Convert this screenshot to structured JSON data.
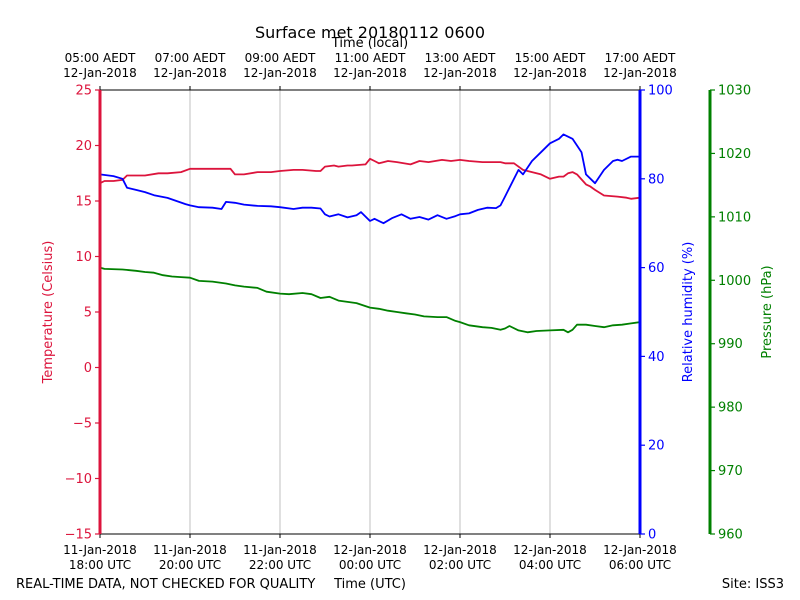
{
  "chart_data": {
    "type": "line",
    "title": "Surface met 20180112 0600",
    "xlabel_top": "Time (local)",
    "xlabel": "Time (UTC)",
    "footer_left": "REAL-TIME DATA, NOT CHECKED FOR QUALITY",
    "footer_right": "Site: ISS3",
    "x_range_hours": [
      0,
      12
    ],
    "x_ticks": [
      0,
      2,
      4,
      6,
      8,
      10,
      12
    ],
    "x_tick_labels_utc": [
      [
        "11-Jan-2018",
        "18:00 UTC"
      ],
      [
        "11-Jan-2018",
        "20:00 UTC"
      ],
      [
        "11-Jan-2018",
        "22:00 UTC"
      ],
      [
        "12-Jan-2018",
        "00:00 UTC"
      ],
      [
        "12-Jan-2018",
        "02:00 UTC"
      ],
      [
        "12-Jan-2018",
        "04:00 UTC"
      ],
      [
        "12-Jan-2018",
        "06:00 UTC"
      ]
    ],
    "x_tick_labels_local": [
      [
        "05:00 AEDT",
        "12-Jan-2018"
      ],
      [
        "07:00 AEDT",
        "12-Jan-2018"
      ],
      [
        "09:00 AEDT",
        "12-Jan-2018"
      ],
      [
        "11:00 AEDT",
        "12-Jan-2018"
      ],
      [
        "13:00 AEDT",
        "12-Jan-2018"
      ],
      [
        "15:00 AEDT",
        "12-Jan-2018"
      ],
      [
        "17:00 AEDT",
        "12-Jan-2018"
      ]
    ],
    "grid": "vertical",
    "axes": {
      "temperature": {
        "label": "Temperature (Celsius)",
        "ylim": [
          -15,
          25
        ],
        "ticks": [
          -15,
          -10,
          -5,
          0,
          5,
          10,
          15,
          20,
          25
        ],
        "tick_labels": [
          "−15",
          "−10",
          "−5",
          "0",
          "5",
          "10",
          "15",
          "20",
          "25"
        ],
        "color": "#dc143c"
      },
      "humidity": {
        "label": "Relative humidity (%)",
        "ylim": [
          0,
          100
        ],
        "ticks": [
          0,
          20,
          40,
          60,
          80,
          100
        ],
        "tick_labels": [
          "0",
          "20",
          "40",
          "60",
          "80",
          "100"
        ],
        "color": "#0000ff"
      },
      "pressure": {
        "label": "Pressure (hPa)",
        "ylim": [
          960,
          1030
        ],
        "ticks": [
          960,
          970,
          980,
          990,
          1000,
          1010,
          1020,
          1030
        ],
        "tick_labels": [
          "960",
          "970",
          "980",
          "990",
          "1000",
          "1010",
          "1020",
          "1030"
        ],
        "color": "#008000"
      }
    },
    "series": [
      {
        "name": "Temperature",
        "axis": "temperature",
        "color": "#dc143c",
        "x": [
          0,
          0.1,
          0.3,
          0.5,
          0.6,
          1.0,
          1.3,
          1.5,
          1.8,
          2.0,
          2.2,
          2.5,
          2.9,
          3.0,
          3.2,
          3.5,
          3.8,
          4.0,
          4.3,
          4.5,
          4.8,
          4.9,
          5.0,
          5.2,
          5.3,
          5.5,
          5.6,
          5.9,
          6.0,
          6.1,
          6.2,
          6.4,
          6.6,
          6.9,
          7.1,
          7.3,
          7.6,
          7.8,
          8.0,
          8.2,
          8.5,
          8.9,
          9.0,
          9.2,
          9.4,
          9.6,
          9.8,
          10.0,
          10.2,
          10.3,
          10.4,
          10.5,
          10.6,
          10.8,
          10.9,
          11.0,
          11.2,
          11.5,
          11.7,
          11.8,
          12.0
        ],
        "values": [
          16.6,
          16.8,
          16.8,
          16.9,
          17.3,
          17.3,
          17.5,
          17.5,
          17.6,
          17.9,
          17.9,
          17.9,
          17.9,
          17.4,
          17.4,
          17.6,
          17.6,
          17.7,
          17.8,
          17.8,
          17.7,
          17.7,
          18.1,
          18.2,
          18.1,
          18.2,
          18.2,
          18.3,
          18.8,
          18.6,
          18.4,
          18.6,
          18.5,
          18.3,
          18.6,
          18.5,
          18.7,
          18.6,
          18.7,
          18.6,
          18.5,
          18.5,
          18.4,
          18.4,
          17.8,
          17.6,
          17.4,
          17.0,
          17.2,
          17.2,
          17.5,
          17.6,
          17.4,
          16.5,
          16.3,
          16.0,
          15.5,
          15.4,
          15.3,
          15.2,
          15.3
        ]
      },
      {
        "name": "Relative humidity",
        "axis": "humidity",
        "color": "#0000ff",
        "x": [
          0,
          0.3,
          0.5,
          0.6,
          0.8,
          1.0,
          1.2,
          1.5,
          1.7,
          1.9,
          2.0,
          2.2,
          2.5,
          2.7,
          2.8,
          3.0,
          3.2,
          3.5,
          3.8,
          4.0,
          4.3,
          4.5,
          4.7,
          4.9,
          5.0,
          5.1,
          5.3,
          5.5,
          5.7,
          5.8,
          6.0,
          6.1,
          6.3,
          6.5,
          6.7,
          6.9,
          7.1,
          7.3,
          7.5,
          7.7,
          7.9,
          8.0,
          8.2,
          8.4,
          8.6,
          8.8,
          8.9,
          9.0,
          9.1,
          9.3,
          9.4,
          9.6,
          9.8,
          10.0,
          10.2,
          10.3,
          10.5,
          10.7,
          10.8,
          11.0,
          11.2,
          11.4,
          11.5,
          11.6,
          11.8,
          12.0
        ],
        "values": [
          81.0,
          80.6,
          80.0,
          78.0,
          77.5,
          77.0,
          76.3,
          75.7,
          75.0,
          74.3,
          74.0,
          73.6,
          73.5,
          73.2,
          74.8,
          74.6,
          74.2,
          73.9,
          73.8,
          73.6,
          73.2,
          73.5,
          73.5,
          73.3,
          72.0,
          71.5,
          72.0,
          71.3,
          71.8,
          72.5,
          70.5,
          71.0,
          70.0,
          71.2,
          72.0,
          71.0,
          71.4,
          70.8,
          71.8,
          71.0,
          71.6,
          72.0,
          72.2,
          73.0,
          73.5,
          73.4,
          74.0,
          76.0,
          78.0,
          82.0,
          81.0,
          84.0,
          86.0,
          88.0,
          89.0,
          90.0,
          89.0,
          86.0,
          81.0,
          79.0,
          82.0,
          84.0,
          84.3,
          84.0,
          85.0,
          85.0
        ]
      },
      {
        "name": "Pressure",
        "axis": "pressure",
        "color": "#008000",
        "x": [
          0,
          0.1,
          0.5,
          0.8,
          1.0,
          1.2,
          1.4,
          1.6,
          1.8,
          2.0,
          2.2,
          2.5,
          2.8,
          3.0,
          3.2,
          3.5,
          3.7,
          4.0,
          4.2,
          4.5,
          4.7,
          4.9,
          5.1,
          5.3,
          5.5,
          5.7,
          6.0,
          6.2,
          6.4,
          6.6,
          6.8,
          7.0,
          7.2,
          7.5,
          7.7,
          7.9,
          8.0,
          8.2,
          8.5,
          8.7,
          8.9,
          9.0,
          9.1,
          9.3,
          9.5,
          9.7,
          10.0,
          10.3,
          10.4,
          10.5,
          10.6,
          10.8,
          11.0,
          11.2,
          11.4,
          11.6,
          11.8,
          12.0
        ],
        "values": [
          1002.0,
          1001.8,
          1001.7,
          1001.5,
          1001.3,
          1001.2,
          1000.8,
          1000.6,
          1000.5,
          1000.4,
          999.9,
          999.8,
          999.5,
          999.2,
          999.0,
          998.8,
          998.2,
          997.9,
          997.8,
          998.0,
          997.8,
          997.2,
          997.4,
          996.8,
          996.6,
          996.4,
          995.7,
          995.5,
          995.2,
          995.0,
          994.8,
          994.6,
          994.3,
          994.2,
          994.2,
          993.6,
          993.4,
          992.9,
          992.6,
          992.5,
          992.2,
          992.4,
          992.8,
          992.1,
          991.8,
          992.0,
          992.1,
          992.2,
          991.8,
          992.2,
          993.0,
          993.0,
          992.8,
          992.6,
          992.9,
          993.0,
          993.2,
          993.4
        ]
      }
    ]
  }
}
